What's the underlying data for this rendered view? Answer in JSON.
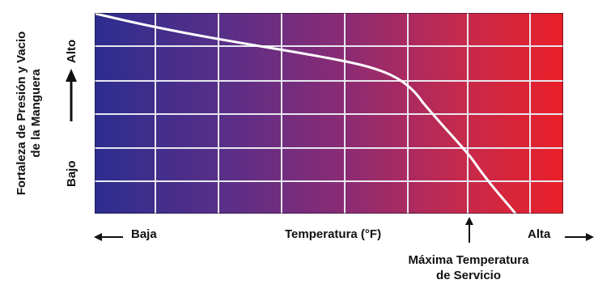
{
  "y_axis": {
    "title_line1": "Fortaleza de Presión y Vacio",
    "title_line2": "de la Manguera",
    "high_label": "Alto",
    "low_label": "Bajo"
  },
  "x_axis": {
    "low_label": "Baja",
    "title": "Temperatura  (°F)",
    "high_label": "Alta"
  },
  "max_temp_label": {
    "line1": "Máxima Temperatura",
    "line2": "de Servicio"
  },
  "colors": {
    "gradient_start": "#2c2d8f",
    "gradient_end": "#ea2028",
    "grid": "#e8e8f0",
    "curve": "#ffffff"
  },
  "grid": {
    "vertical_lines": 6,
    "horizontal_lines": 5
  }
}
